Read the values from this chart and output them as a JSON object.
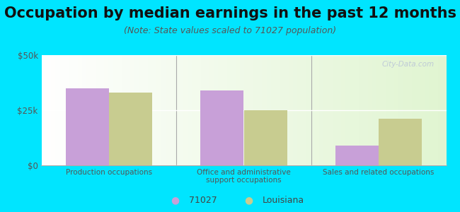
{
  "title": "Occupation by median earnings in the past 12 months",
  "subtitle": "(Note: State values scaled to 71027 population)",
  "categories": [
    "Production occupations",
    "Office and administrative\nsupport occupations",
    "Sales and related occupations"
  ],
  "values_71027": [
    35000,
    34000,
    9000
  ],
  "values_louisiana": [
    33000,
    25000,
    21000
  ],
  "color_71027": "#c8a0d8",
  "color_louisiana": "#c8cc90",
  "ylim": [
    0,
    50000
  ],
  "yticks": [
    0,
    25000,
    50000
  ],
  "ytick_labels": [
    "$0",
    "$25k",
    "$50k"
  ],
  "background_color": "#00e5ff",
  "legend_label_71027": "71027",
  "legend_label_louisiana": "Louisiana",
  "watermark": "City-Data.com",
  "title_fontsize": 15,
  "subtitle_fontsize": 9,
  "bar_width": 0.32
}
